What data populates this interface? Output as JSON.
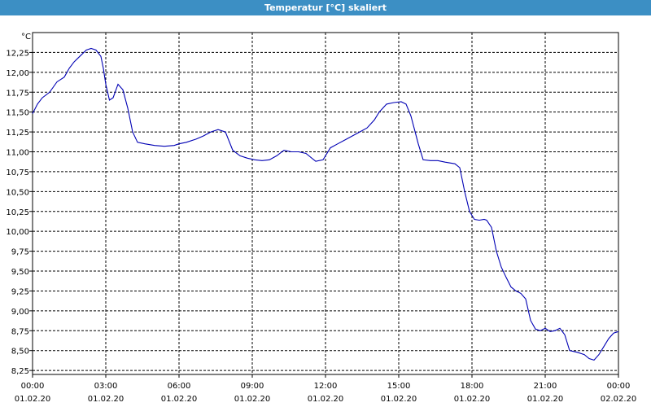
{
  "window": {
    "title": "Temperatur [°C] skaliert"
  },
  "chart_data": {
    "type": "line",
    "title": "Temperatur [°C] skaliert",
    "ylabel": "°C",
    "xlabel": "",
    "ylim": [
      8.2,
      12.5
    ],
    "xlim": [
      0,
      24
    ],
    "grid": true,
    "line_color": "#0000b4",
    "y_ticks": [
      8.25,
      8.5,
      8.75,
      9.0,
      9.25,
      9.5,
      9.75,
      10.0,
      10.25,
      10.5,
      10.75,
      11.0,
      11.25,
      11.5,
      11.75,
      12.0,
      12.25
    ],
    "y_tick_labels": [
      "8,25",
      "8,50",
      "8,75",
      "9,00",
      "9,25",
      "9,50",
      "9,75",
      "10,00",
      "10,25",
      "10,50",
      "10,75",
      "11,00",
      "11,25",
      "11,50",
      "11,75",
      "12,00",
      "12,25"
    ],
    "x_ticks": [
      0,
      3,
      6,
      9,
      12,
      15,
      18,
      21,
      24
    ],
    "x_tick_times": [
      "00:00",
      "03:00",
      "06:00",
      "09:00",
      "12:00",
      "15:00",
      "18:00",
      "21:00",
      "00:00"
    ],
    "x_tick_dates": [
      "01.02.20",
      "01.02.20",
      "01.02.20",
      "01.02.20",
      "01.02.20",
      "01.02.20",
      "01.02.20",
      "01.02.20",
      "02.02.20"
    ],
    "series": [
      {
        "x": [
          0,
          0.2,
          0.4,
          0.7,
          1.0,
          1.3,
          1.5,
          1.7,
          2.0,
          2.2,
          2.4,
          2.6,
          2.8,
          2.9,
          3.0,
          3.15,
          3.3,
          3.5,
          3.7,
          3.9,
          4.1,
          4.3,
          4.6,
          5.0,
          5.4,
          5.8,
          6.0,
          6.3,
          6.7,
          7.0,
          7.3,
          7.6,
          7.9,
          8.2,
          8.5,
          8.8,
          9.1,
          9.4,
          9.7,
          10.0,
          10.3,
          10.6,
          10.9,
          11.2,
          11.6,
          11.9,
          12.2,
          12.5,
          12.8,
          13.1,
          13.4,
          13.7,
          14.0,
          14.2,
          14.5,
          14.8,
          15.1,
          15.3,
          15.5,
          15.8,
          16.0,
          16.3,
          16.6,
          16.9,
          17.3,
          17.5,
          17.7,
          17.9,
          18.1,
          18.3,
          18.5,
          18.6,
          18.8,
          19.0,
          19.2,
          19.4,
          19.6,
          19.8,
          20.0,
          20.2,
          20.4,
          20.6,
          20.8,
          21.0,
          21.2,
          21.4,
          21.6,
          21.8,
          22.0,
          22.3,
          22.6,
          22.8,
          23.0,
          23.2,
          23.4,
          23.6,
          23.8,
          24.0
        ],
        "y": [
          11.48,
          11.6,
          11.68,
          11.75,
          11.88,
          11.94,
          12.05,
          12.13,
          12.22,
          12.28,
          12.3,
          12.28,
          12.2,
          12.05,
          11.85,
          11.65,
          11.68,
          11.85,
          11.78,
          11.55,
          11.25,
          11.12,
          11.1,
          11.08,
          11.07,
          11.08,
          11.1,
          11.12,
          11.16,
          11.2,
          11.25,
          11.28,
          11.25,
          11.02,
          10.95,
          10.92,
          10.9,
          10.89,
          10.9,
          10.95,
          11.02,
          11.0,
          11.0,
          10.98,
          10.88,
          10.9,
          11.05,
          11.1,
          11.15,
          11.2,
          11.25,
          11.3,
          11.4,
          11.5,
          11.6,
          11.62,
          11.63,
          11.6,
          11.45,
          11.1,
          10.9,
          10.89,
          10.89,
          10.87,
          10.85,
          10.8,
          10.5,
          10.25,
          10.15,
          10.14,
          10.15,
          10.14,
          10.05,
          9.75,
          9.55,
          9.42,
          9.3,
          9.25,
          9.22,
          9.15,
          8.88,
          8.77,
          8.75,
          8.78,
          8.74,
          8.75,
          8.78,
          8.7,
          8.5,
          8.48,
          8.45,
          8.4,
          8.38,
          8.45,
          8.55,
          8.65,
          8.72,
          8.74
        ]
      }
    ]
  }
}
